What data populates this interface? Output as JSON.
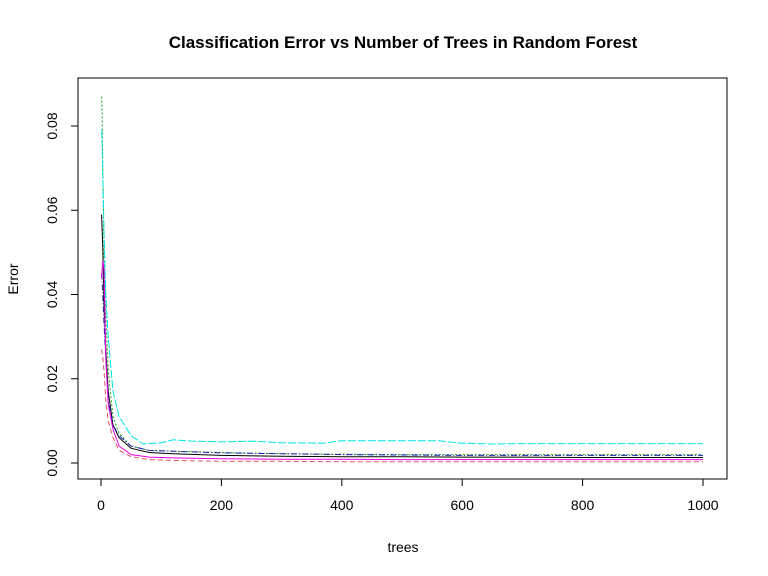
{
  "chart_data": {
    "type": "line",
    "title": "Classification Error vs Number of Trees in Random Forest",
    "xlabel": "trees",
    "ylabel": "Error",
    "xlim": [
      0,
      1000
    ],
    "ylim": [
      0,
      0.088
    ],
    "x_ticks": [
      "0",
      "200",
      "400",
      "600",
      "800",
      "1000"
    ],
    "y_ticks": [
      "0.00",
      "0.02",
      "0.04",
      "0.06",
      "0.08"
    ],
    "grid": false,
    "legend": "none",
    "series": [
      {
        "color": "#000000",
        "dash": "",
        "x": [
          1,
          3,
          5,
          8,
          12,
          20,
          30,
          50,
          80,
          120,
          200,
          300,
          400,
          500,
          600,
          700,
          800,
          900,
          1000
        ],
        "y": [
          0.059,
          0.051,
          0.038,
          0.027,
          0.017,
          0.009,
          0.006,
          0.0035,
          0.0025,
          0.0022,
          0.0018,
          0.0016,
          0.0015,
          0.0015,
          0.0014,
          0.0014,
          0.0013,
          0.0013,
          0.0013
        ]
      },
      {
        "color": "#DF536B",
        "dash": "5,3",
        "x": [
          1,
          3,
          5,
          8,
          12,
          20,
          30,
          50,
          80,
          120,
          200,
          300,
          400,
          500,
          600,
          700,
          800,
          900,
          1000
        ],
        "y": [
          0.027,
          0.025,
          0.022,
          0.015,
          0.01,
          0.006,
          0.003,
          0.0015,
          0.0008,
          0.0006,
          0.0004,
          0.0004,
          0.0003,
          0.0003,
          0.0003,
          0.0003,
          0.0003,
          0.0003,
          0.0003
        ]
      },
      {
        "color": "#1a9d1a",
        "dash": "2,2",
        "x": [
          1,
          2,
          3,
          5,
          8,
          12,
          20,
          30,
          50,
          80,
          120,
          200,
          300,
          400,
          500,
          600,
          700,
          800,
          900,
          1000
        ],
        "y": [
          0.087,
          0.082,
          0.07,
          0.05,
          0.035,
          0.022,
          0.011,
          0.007,
          0.004,
          0.003,
          0.0028,
          0.0025,
          0.0022,
          0.0021,
          0.002,
          0.002,
          0.002,
          0.002,
          0.002,
          0.002
        ]
      },
      {
        "color": "#1f1fb4",
        "dash": "6,2,1,2",
        "x": [
          1,
          3,
          5,
          8,
          12,
          20,
          30,
          50,
          80,
          120,
          200,
          300,
          400,
          500,
          600,
          700,
          800,
          900,
          1000
        ],
        "y": [
          0.045,
          0.04,
          0.033,
          0.025,
          0.015,
          0.009,
          0.0065,
          0.004,
          0.003,
          0.0028,
          0.0024,
          0.0022,
          0.002,
          0.0019,
          0.0018,
          0.0018,
          0.0018,
          0.0018,
          0.0018
        ]
      },
      {
        "color": "#00e5e5",
        "dash": "8,2",
        "x": [
          1,
          2,
          3,
          5,
          8,
          12,
          20,
          30,
          50,
          70,
          100,
          120,
          150,
          200,
          250,
          300,
          370,
          400,
          450,
          500,
          560,
          600,
          650,
          700,
          800,
          900,
          1000
        ],
        "y": [
          0.079,
          0.075,
          0.068,
          0.055,
          0.04,
          0.03,
          0.017,
          0.011,
          0.0065,
          0.0045,
          0.0048,
          0.0055,
          0.0052,
          0.005,
          0.0052,
          0.0048,
          0.0047,
          0.0053,
          0.0053,
          0.0053,
          0.0053,
          0.0047,
          0.0045,
          0.0046,
          0.0046,
          0.0046,
          0.0046
        ]
      },
      {
        "color": "#e600e6",
        "dash": "",
        "x": [
          1,
          3,
          5,
          8,
          12,
          20,
          30,
          50,
          80,
          120,
          200,
          300,
          400,
          500,
          600,
          700,
          800,
          900,
          1000
        ],
        "y": [
          0.044,
          0.048,
          0.046,
          0.025,
          0.014,
          0.008,
          0.004,
          0.002,
          0.0014,
          0.0012,
          0.001,
          0.0009,
          0.0009,
          0.0008,
          0.0008,
          0.0008,
          0.0008,
          0.0008,
          0.0008
        ]
      }
    ]
  }
}
